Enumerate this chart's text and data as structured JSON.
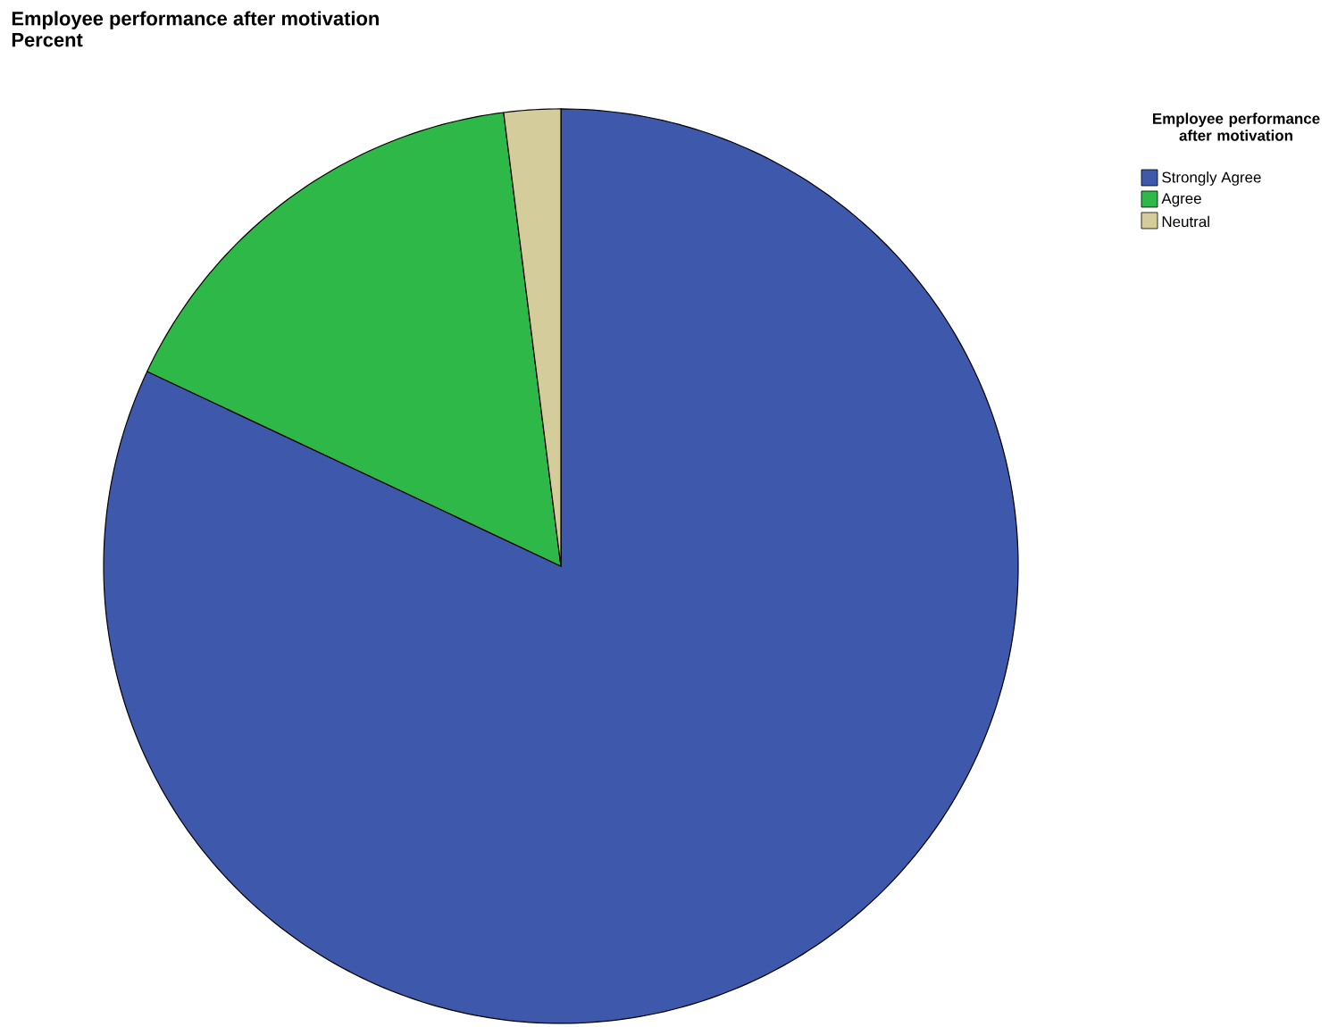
{
  "chart_data": {
    "type": "pie",
    "title": "Employee performance after motivation",
    "subtitle": "Percent",
    "legend_title": "Employee performance after motivation",
    "legend": "top right",
    "categories": [
      "Strongly Agree",
      "Agree",
      "Neutral"
    ],
    "values": [
      82,
      16,
      2
    ],
    "colors": [
      "#3e58ac",
      "#2eb847",
      "#d4cc9b"
    ]
  }
}
